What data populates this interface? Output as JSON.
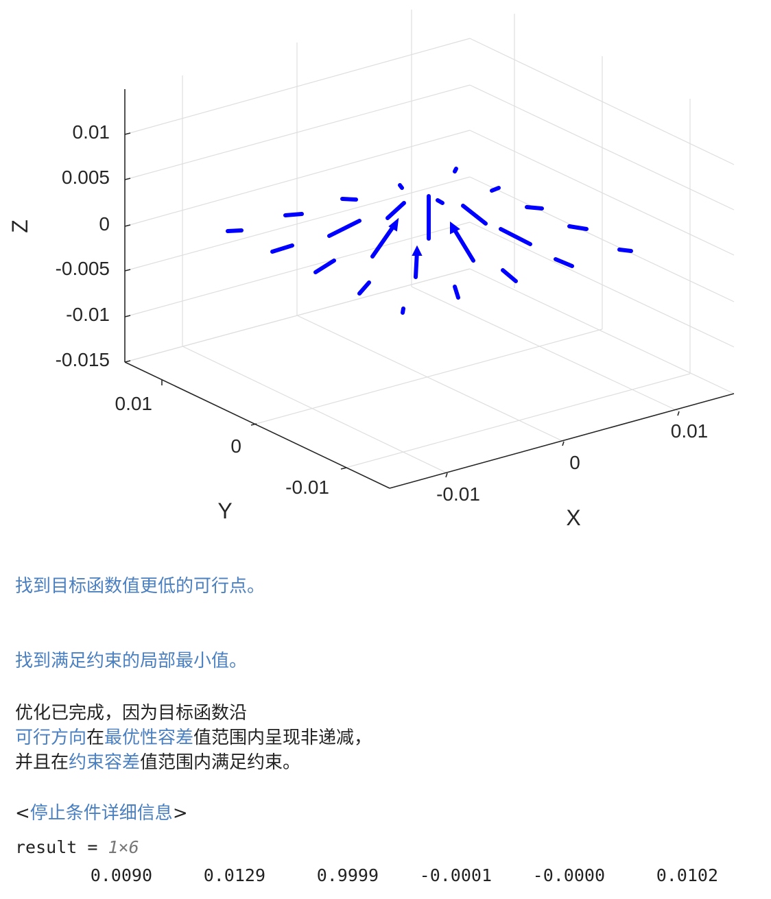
{
  "chart_data": {
    "type": "quiver3",
    "xlabel": "X",
    "ylabel": "Y",
    "zlabel": "Z",
    "x_ticks": [
      "-0.01",
      "0",
      "0.01"
    ],
    "y_ticks": [
      "-0.01",
      "0",
      "0.01"
    ],
    "z_ticks": [
      "0.01",
      "0.005",
      "0",
      "-0.005",
      "-0.01",
      "-0.015"
    ],
    "zlim": [
      -0.015,
      0.01
    ],
    "grid": true,
    "arrow_color": "#0000ff",
    "arrows": [
      {
        "x0": 0.0,
        "y0": 0.0,
        "z0": -0.002,
        "x1": 0.0,
        "y1": 0.0,
        "z1": 0.0035
      },
      {
        "x0": -0.003,
        "y0": -0.002,
        "z0": -0.0055,
        "x1": -0.003,
        "y1": -0.002,
        "z1": -0.002
      },
      {
        "x0": -0.004,
        "y0": 0.003,
        "z0": -0.003,
        "x1": -0.001,
        "y1": 0.004,
        "z1": 0.0005
      },
      {
        "x0": 0.004,
        "y0": -0.001,
        "z0": -0.004,
        "x1": 0.002,
        "y1": -0.002,
        "z1": 0.0
      },
      {
        "x0": -0.006,
        "y0": 0.006,
        "z0": -0.001,
        "x1": -0.003,
        "y1": 0.006,
        "z1": 0.0015
      },
      {
        "x0": 0.006,
        "y0": -0.003,
        "z0": -0.001,
        "x1": 0.003,
        "y1": -0.003,
        "z1": 0.002
      },
      {
        "x0": -0.007,
        "y0": 0.001,
        "z0": -0.004,
        "x1": -0.004,
        "y1": 0.002,
        "z1": -0.002
      },
      {
        "x0": 0.004,
        "y0": -0.006,
        "z0": -0.005,
        "x1": 0.003,
        "y1": -0.005,
        "z1": -0.0035
      },
      {
        "x0": -0.003,
        "y0": -0.006,
        "z0": -0.006,
        "x1": -0.002,
        "y1": -0.005,
        "z1": -0.005
      },
      {
        "x0": 0.008,
        "y0": 0.001,
        "z0": -0.001,
        "x1": 0.006,
        "y1": 0.001,
        "z1": 0.0
      }
    ]
  },
  "output": {
    "line1": "找到目标函数值更低的可行点。",
    "line2": "找到满足约束的局部最小值。",
    "para_a": "优化已完成，因为目标函数沿",
    "para_b_link1": "可行方向",
    "para_b_text1": "在",
    "para_b_link2": "最优性容差",
    "para_b_text2": "值范围内呈现非递减，",
    "para_c_text1": "并且在",
    "para_c_link": "约束容差",
    "para_c_text2": "值范围内满足约束。",
    "details_open": "<",
    "details_link": "停止条件详细信息",
    "details_close": ">",
    "result_label": "result = ",
    "result_size": "1×6",
    "result_values": [
      "0.0090",
      "0.0129",
      "0.9999",
      "-0.0001",
      "-0.0000",
      "0.0102"
    ]
  }
}
